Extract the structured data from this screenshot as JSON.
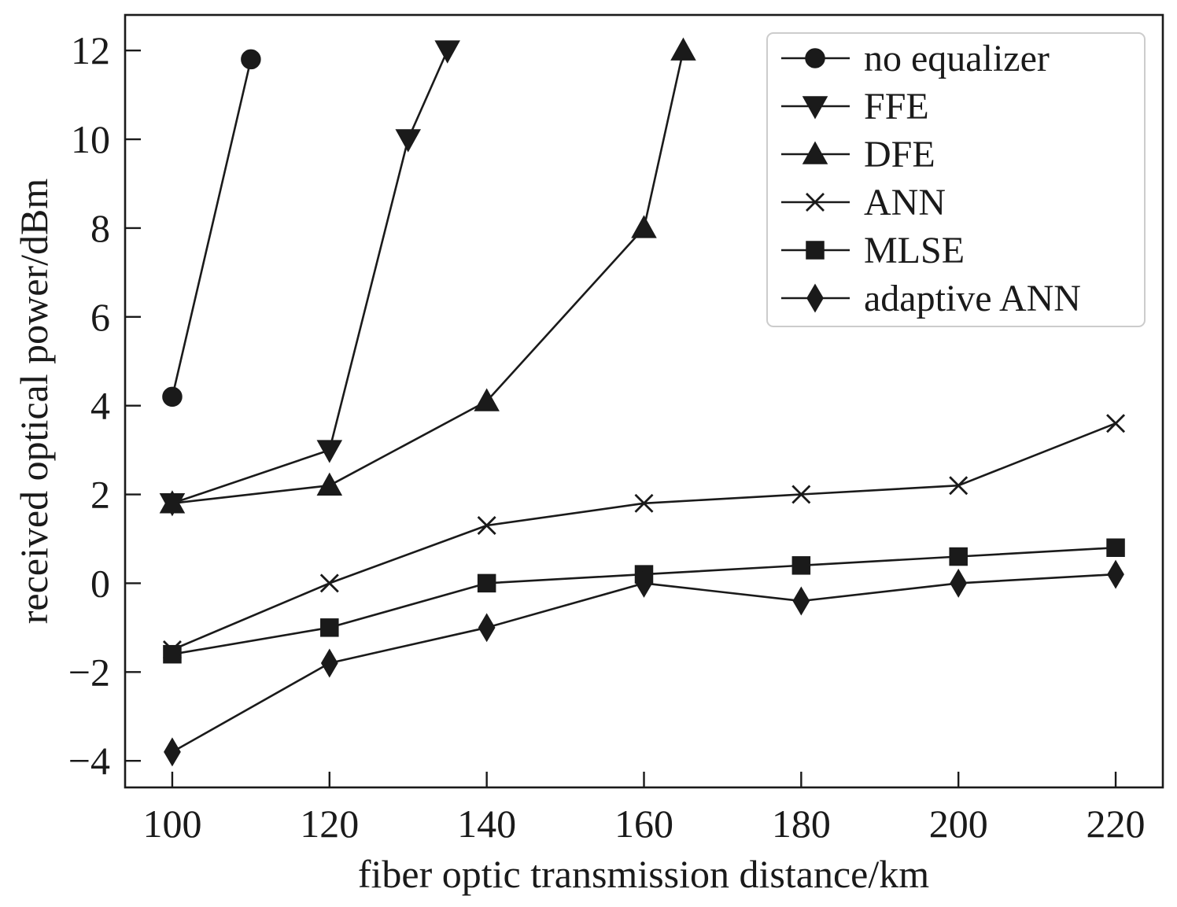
{
  "chart_data": {
    "type": "line",
    "xlabel": "fiber optic transmission distance/km",
    "ylabel": "received optical power/dBm",
    "xlim": [
      94,
      226
    ],
    "ylim": [
      -4.6,
      12.8
    ],
    "xticks": [
      100,
      120,
      140,
      160,
      180,
      200,
      220
    ],
    "xtick_labels": [
      "100",
      "120",
      "140",
      "160",
      "180",
      "200",
      "220"
    ],
    "yticks": [
      -4,
      -2,
      0,
      2,
      4,
      6,
      8,
      10,
      12
    ],
    "ytick_labels": [
      "−4",
      "−2",
      "0",
      "2",
      "4",
      "6",
      "8",
      "10",
      "12"
    ],
    "grid": false,
    "legend": "top-right",
    "colors": {
      "series": "#1a1a1a",
      "axes": "#1a1a1a",
      "legend_frame": "#cccccc"
    },
    "series": [
      {
        "name": "no equalizer",
        "marker": "circle",
        "x": [
          100,
          110
        ],
        "y": [
          4.2,
          11.8
        ]
      },
      {
        "name": "FFE",
        "marker": "triangle-down",
        "x": [
          100,
          120,
          130,
          135
        ],
        "y": [
          1.8,
          3.0,
          10.0,
          12.0
        ]
      },
      {
        "name": "DFE",
        "marker": "triangle-up",
        "x": [
          100,
          120,
          140,
          160,
          165
        ],
        "y": [
          1.8,
          2.2,
          4.1,
          8.0,
          12.0
        ]
      },
      {
        "name": "ANN",
        "marker": "x",
        "x": [
          100,
          120,
          140,
          160,
          180,
          200,
          220
        ],
        "y": [
          -1.5,
          0.0,
          1.3,
          1.8,
          2.0,
          2.2,
          3.6
        ]
      },
      {
        "name": "MLSE",
        "marker": "square",
        "x": [
          100,
          120,
          140,
          160,
          180,
          200,
          220
        ],
        "y": [
          -1.6,
          -1.0,
          0.0,
          0.2,
          0.4,
          0.6,
          0.8
        ]
      },
      {
        "name": "adaptive ANN",
        "marker": "thin-diamond",
        "x": [
          100,
          120,
          140,
          160,
          180,
          200,
          220
        ],
        "y": [
          -3.8,
          -1.8,
          -1.0,
          0.0,
          -0.4,
          0.0,
          0.2
        ]
      }
    ]
  }
}
